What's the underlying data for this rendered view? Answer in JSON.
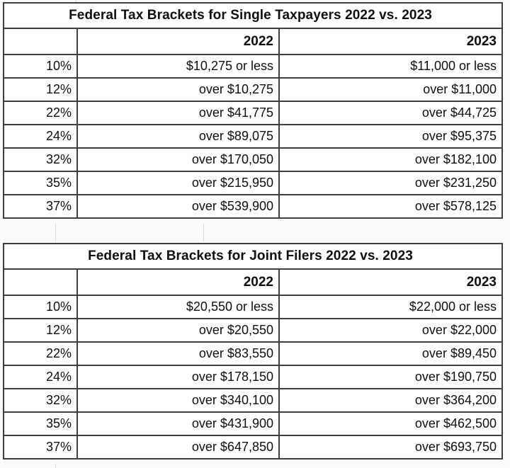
{
  "page": {
    "background_color": "#fbfbfb",
    "table_background_color": "#ffffff",
    "border_color": "#3e3e3e",
    "text_color": "#0e0e0e"
  },
  "chart_data": [
    {
      "type": "table",
      "title": "Federal Tax Brackets for Single Taxpayers 2022 vs. 2023",
      "columns": [
        "",
        "2022",
        "2023"
      ],
      "rows": [
        {
          "rate": "10%",
          "y2022": "$10,275 or less",
          "y2023": "$11,000 or less"
        },
        {
          "rate": "12%",
          "y2022": "over $10,275",
          "y2023": "over $11,000"
        },
        {
          "rate": "22%",
          "y2022": "over $41,775",
          "y2023": "over $44,725"
        },
        {
          "rate": "24%",
          "y2022": "over $89,075",
          "y2023": "over $95,375"
        },
        {
          "rate": "32%",
          "y2022": "over $170,050",
          "y2023": "over $182,100"
        },
        {
          "rate": "35%",
          "y2022": "over $215,950",
          "y2023": "over $231,250"
        },
        {
          "rate": "37%",
          "y2022": "over $539,900",
          "y2023": "over $578,125"
        }
      ]
    },
    {
      "type": "table",
      "title": "Federal Tax Brackets for Joint Filers 2022 vs. 2023",
      "columns": [
        "",
        "2022",
        "2023"
      ],
      "rows": [
        {
          "rate": "10%",
          "y2022": "$20,550 or less",
          "y2023": "$22,000 or less"
        },
        {
          "rate": "12%",
          "y2022": "over $20,550",
          "y2023": "over $22,000"
        },
        {
          "rate": "22%",
          "y2022": "over $83,550",
          "y2023": "over $89,450"
        },
        {
          "rate": "24%",
          "y2022": "over $178,150",
          "y2023": "over $190,750"
        },
        {
          "rate": "32%",
          "y2022": "over $340,100",
          "y2023": "over $364,200"
        },
        {
          "rate": "35%",
          "y2022": "over $431,900",
          "y2023": "over $462,500"
        },
        {
          "rate": "37%",
          "y2022": "over $647,850",
          "y2023": "over $693,750"
        }
      ]
    }
  ]
}
